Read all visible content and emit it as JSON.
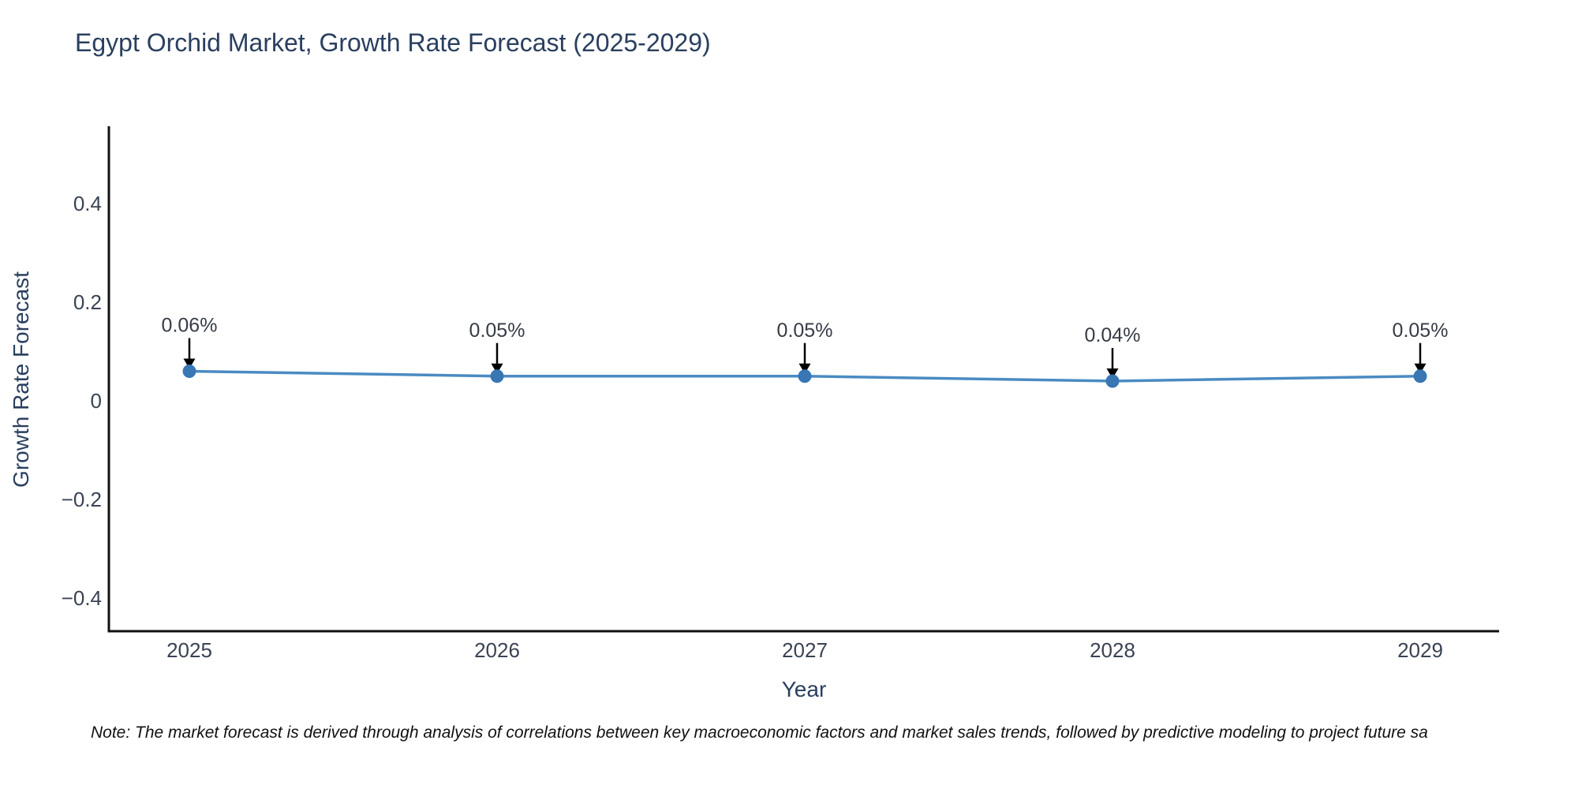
{
  "chart_data": {
    "type": "line",
    "title": "Egypt Orchid Market, Growth Rate Forecast (2025-2029)",
    "xlabel": "Year",
    "ylabel": "Growth Rate Forecast",
    "x": [
      2025,
      2026,
      2027,
      2028,
      2029
    ],
    "series": [
      {
        "name": "Growth Rate Forecast",
        "values": [
          0.06,
          0.05,
          0.05,
          0.04,
          0.05
        ],
        "point_labels": [
          "0.06%",
          "0.05%",
          "0.05%",
          "0.04%",
          "0.05%"
        ]
      }
    ],
    "y_ticks": [
      -0.4,
      -0.2,
      0,
      0.2,
      0.4
    ],
    "ylim": [
      -0.467,
      0.557
    ],
    "grid": false,
    "legend": "none",
    "annotations_style": "value label with downward arrow to each point",
    "colors": {
      "line": "#4a8bc2",
      "marker": "#3876b4",
      "axis_line": "#111111",
      "title_text": "#2a3f5f",
      "tick_text": "#3a4354",
      "annotation_text": "#363c46",
      "arrow": "#000000"
    }
  },
  "footnote": "Note: The market forecast is derived through analysis of correlations between key macroeconomic factors and market sales trends, followed by predictive modeling to project future sa"
}
